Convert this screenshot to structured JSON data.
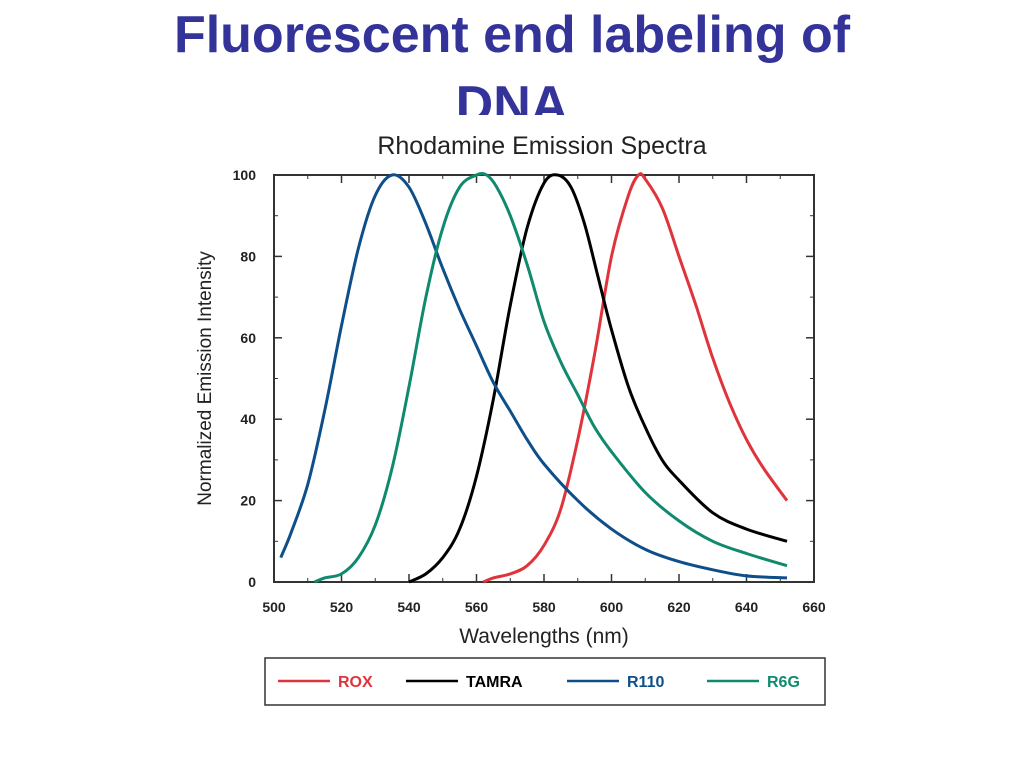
{
  "slide": {
    "title_line1": "Fluorescent end labeling of",
    "title_line2": "DNA"
  },
  "colors": {
    "title": "#333399",
    "ROX": "#e0343c",
    "TAMRA": "#000000",
    "R110": "#0e4f8a",
    "R6G": "#108a6e"
  },
  "chart_data": {
    "type": "line",
    "title": "Rhodamine Emission Spectra",
    "xlabel": "Wavelengths (nm)",
    "ylabel": "Normalized Emission Intensity",
    "xlim": [
      500,
      660
    ],
    "ylim": [
      0,
      100
    ],
    "xticks": [
      500,
      520,
      540,
      560,
      580,
      600,
      620,
      640,
      660
    ],
    "yticks": [
      0,
      20,
      40,
      60,
      80,
      100
    ],
    "grid": false,
    "legend_position": "bottom",
    "series": [
      {
        "name": "ROX",
        "color": "#e0343c",
        "x": [
          562,
          565,
          570,
          575,
          580,
          585,
          590,
          595,
          600,
          605,
          608,
          610,
          615,
          620,
          625,
          630,
          635,
          640,
          645,
          652
        ],
        "y": [
          0,
          1,
          2,
          4,
          9,
          18,
          35,
          56,
          80,
          95,
          100,
          99,
          92,
          80,
          68,
          55,
          44,
          35,
          28,
          20
        ]
      },
      {
        "name": "TAMRA",
        "color": "#000000",
        "x": [
          540,
          545,
          550,
          555,
          560,
          565,
          570,
          575,
          580,
          584,
          588,
          592,
          596,
          600,
          605,
          610,
          615,
          620,
          630,
          640,
          652
        ],
        "y": [
          0,
          2,
          6,
          13,
          26,
          45,
          68,
          87,
          98,
          100,
          97,
          88,
          75,
          62,
          48,
          38,
          30,
          25,
          17,
          13,
          10
        ]
      },
      {
        "name": "R110",
        "color": "#0e4f8a",
        "x": [
          502,
          505,
          510,
          515,
          520,
          525,
          530,
          535,
          540,
          545,
          550,
          555,
          560,
          565,
          570,
          575,
          580,
          590,
          600,
          610,
          620,
          630,
          640,
          652
        ],
        "y": [
          6,
          12,
          24,
          42,
          63,
          82,
          95,
          100,
          97,
          88,
          77,
          67,
          58,
          49,
          42,
          35,
          29,
          20,
          13,
          8,
          5,
          3,
          1.5,
          1
        ]
      },
      {
        "name": "R6G",
        "color": "#108a6e",
        "x": [
          512,
          515,
          520,
          525,
          530,
          535,
          540,
          545,
          550,
          555,
          560,
          563,
          566,
          570,
          575,
          580,
          585,
          590,
          595,
          600,
          610,
          620,
          630,
          640,
          652
        ],
        "y": [
          0,
          1,
          2,
          6,
          14,
          28,
          48,
          70,
          87,
          97,
          100,
          100,
          97,
          90,
          78,
          64,
          54,
          46,
          38,
          32,
          22,
          15,
          10,
          7,
          4
        ]
      }
    ]
  }
}
